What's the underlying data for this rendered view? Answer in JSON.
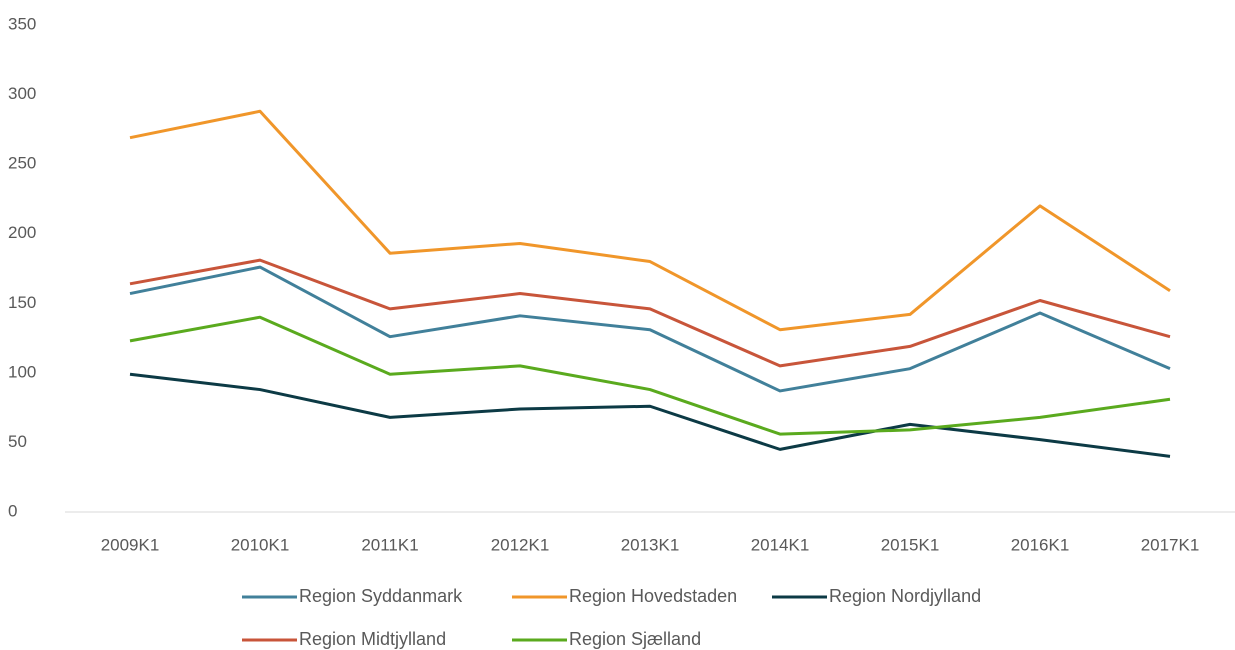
{
  "chart_data": {
    "type": "line",
    "categories": [
      "2009K1",
      "2010K1",
      "2011K1",
      "2012K1",
      "2013K1",
      "2014K1",
      "2015K1",
      "2016K1",
      "2017K1"
    ],
    "series": [
      {
        "name": "Region Syddanmark",
        "color": "#41809a",
        "values": [
          157,
          176,
          126,
          141,
          131,
          87,
          103,
          143,
          103
        ]
      },
      {
        "name": "Region Hovedstaden",
        "color": "#f0962a",
        "values": [
          269,
          288,
          186,
          193,
          180,
          131,
          142,
          220,
          159
        ]
      },
      {
        "name": "Region Nordjylland",
        "color": "#0c3a45",
        "values": [
          99,
          88,
          68,
          74,
          76,
          45,
          63,
          52,
          40
        ]
      },
      {
        "name": "Region Midtjylland",
        "color": "#c8553a",
        "values": [
          164,
          181,
          146,
          157,
          146,
          105,
          119,
          152,
          126
        ]
      },
      {
        "name": "Region Sjælland",
        "color": "#5aaa1e",
        "values": [
          123,
          140,
          99,
          105,
          88,
          56,
          59,
          68,
          81
        ]
      }
    ],
    "ylim": [
      0,
      350
    ],
    "yticks": [
      0,
      50,
      100,
      150,
      200,
      250,
      300,
      350
    ],
    "grid": false,
    "legend": "bottom"
  }
}
